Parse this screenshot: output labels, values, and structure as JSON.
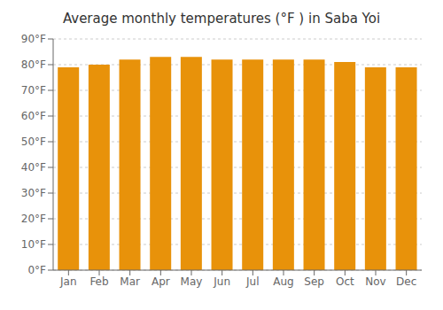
{
  "chart_data": {
    "type": "bar",
    "title": "Average monthly temperatures (°F ) in Saba Yoi",
    "categories": [
      "Jan",
      "Feb",
      "Mar",
      "Apr",
      "May",
      "Jun",
      "Jul",
      "Aug",
      "Sep",
      "Oct",
      "Nov",
      "Dec"
    ],
    "values": [
      79,
      80,
      82,
      83,
      83,
      82,
      82,
      82,
      82,
      81,
      79,
      79
    ],
    "color": "#E8920A",
    "ylim": [
      0,
      90
    ],
    "yticks": [
      {
        "value": 0,
        "label": "0°F"
      },
      {
        "value": 10,
        "label": "10°F"
      },
      {
        "value": 20,
        "label": "20°F"
      },
      {
        "value": 30,
        "label": "30°F"
      },
      {
        "value": 40,
        "label": "40°F"
      },
      {
        "value": 50,
        "label": "50°F"
      },
      {
        "value": 60,
        "label": "60°F"
      },
      {
        "value": 70,
        "label": "70°F"
      },
      {
        "value": 80,
        "label": "80°F"
      },
      {
        "value": 90,
        "label": "90°F"
      }
    ],
    "grid": true
  }
}
